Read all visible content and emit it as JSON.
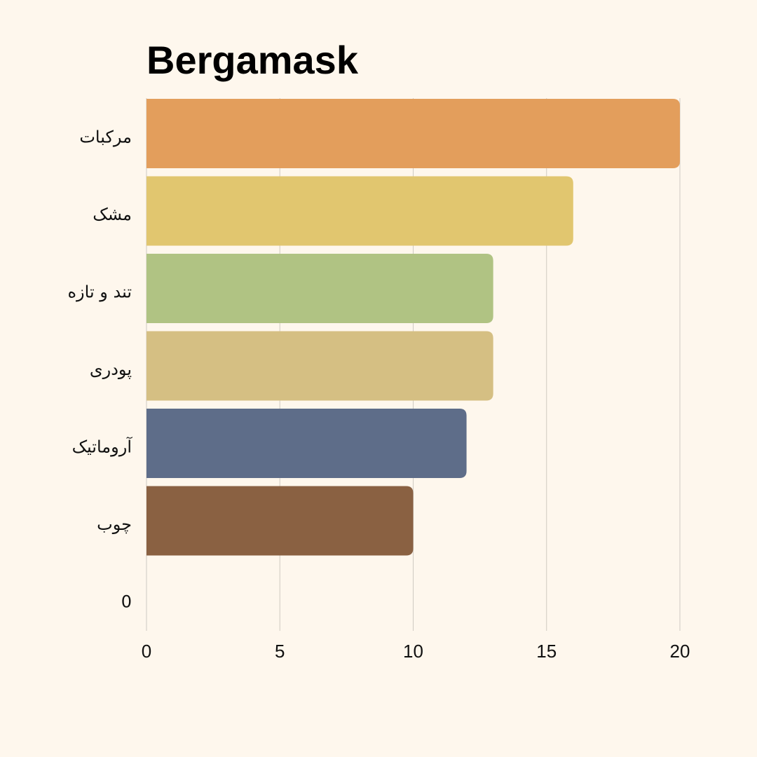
{
  "chart_data": {
    "type": "bar",
    "orientation": "horizontal",
    "title": "Bergamask",
    "xlabel": "",
    "ylabel": "",
    "xlim": [
      0,
      20
    ],
    "x_ticks": [
      "0",
      "5",
      "10",
      "15",
      "20"
    ],
    "categories": [
      "مرکبات",
      "مشک",
      "تند و تازه",
      "پودری",
      "آروماتیک",
      "چوب",
      "0"
    ],
    "values": [
      20,
      16,
      13,
      13,
      12,
      10,
      0
    ],
    "bar_colors": [
      "#e39e5c",
      "#e1c66f",
      "#b0c383",
      "#d5bf83",
      "#5e6d89",
      "#8a6142",
      null
    ],
    "grid": "vertical",
    "gridline_color": "#cfcac2",
    "background": "#fef7ed",
    "legend": "none"
  }
}
